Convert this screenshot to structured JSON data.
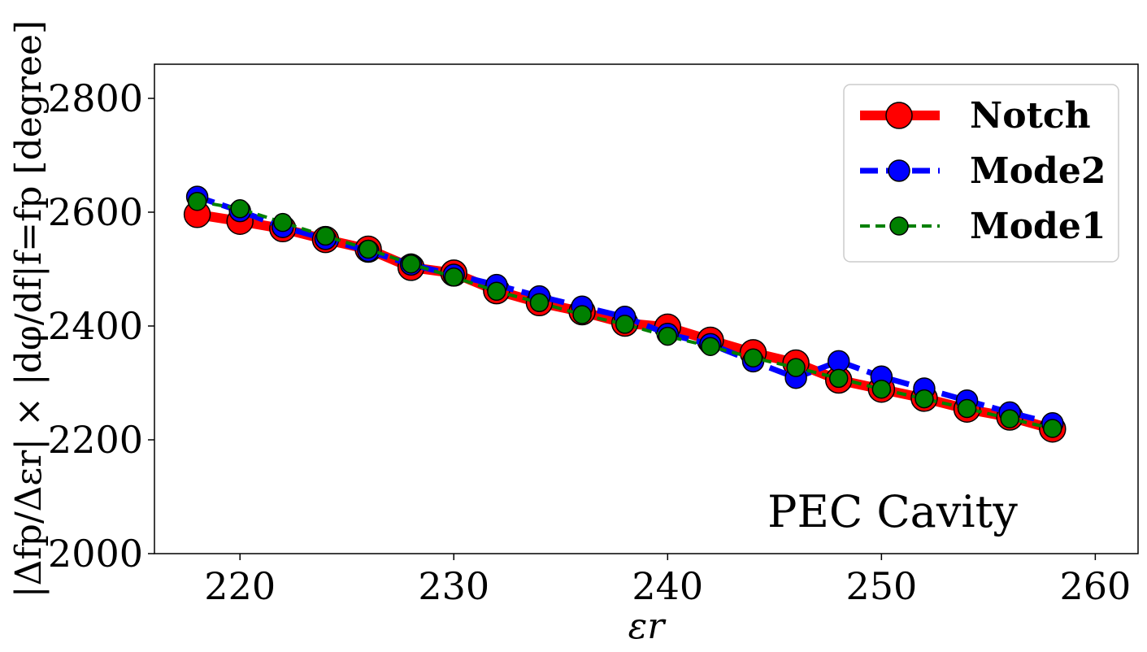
{
  "chart_data": {
    "type": "line",
    "xlabel": "εr",
    "ylabel": "|Δfp/Δεr| × |dφ/df|f=fp [degree]",
    "xlim": [
      216,
      262
    ],
    "ylim": [
      2000,
      2860
    ],
    "xticks": [
      220,
      230,
      240,
      250,
      260
    ],
    "yticks": [
      2000,
      2200,
      2400,
      2600,
      2800
    ],
    "x": [
      218,
      220,
      222,
      224,
      226,
      228,
      230,
      232,
      234,
      236,
      238,
      240,
      242,
      244,
      246,
      248,
      250,
      252,
      254,
      256,
      258
    ],
    "series": [
      {
        "name": "Notch",
        "color": "#ff0000",
        "values": [
          2596,
          2584,
          2571,
          2552,
          2535,
          2503,
          2493,
          2462,
          2441,
          2425,
          2405,
          2398,
          2375,
          2353,
          2335,
          2305,
          2289,
          2273,
          2254,
          2240,
          2219
        ]
      },
      {
        "name": "Mode2",
        "color": "#0000ff",
        "values": [
          2627,
          2602,
          2574,
          2553,
          2532,
          2508,
          2490,
          2472,
          2452,
          2434,
          2416,
          2386,
          2368,
          2338,
          2309,
          2338,
          2311,
          2290,
          2269,
          2248,
          2229
        ]
      },
      {
        "name": "Mode1",
        "color": "#008000",
        "values": [
          2619,
          2606,
          2582,
          2558,
          2535,
          2509,
          2486,
          2461,
          2441,
          2420,
          2403,
          2382,
          2364,
          2344,
          2327,
          2308,
          2289,
          2272,
          2255,
          2237,
          2220
        ]
      }
    ],
    "legend": {
      "position": "top-right",
      "labels": [
        "Notch",
        "Mode2",
        "Mode1"
      ]
    },
    "annotation": "PEC Cavity",
    "grid": false
  }
}
